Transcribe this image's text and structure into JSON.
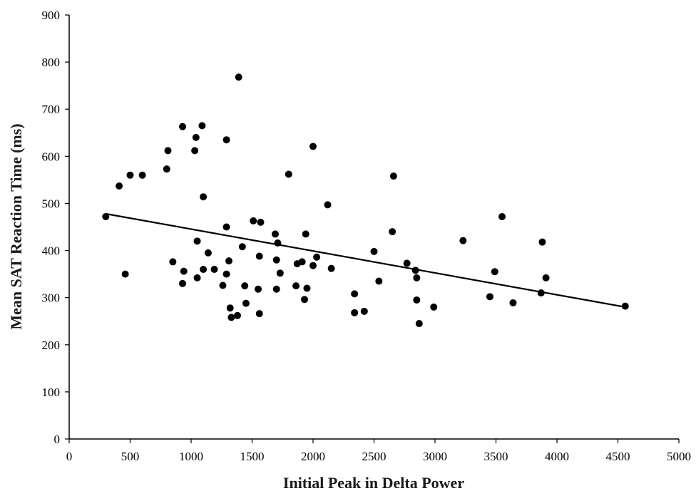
{
  "chart_data": {
    "type": "scatter",
    "title": "",
    "xlabel": "Initial Peak in Delta Power",
    "ylabel": "Mean SAT Reaction Time (ms)",
    "xlim": [
      0,
      5000
    ],
    "ylim": [
      0,
      900
    ],
    "xticks": [
      0,
      500,
      1000,
      1500,
      2000,
      2500,
      3000,
      3500,
      4000,
      4500,
      5000
    ],
    "yticks": [
      0,
      100,
      200,
      300,
      400,
      500,
      600,
      700,
      800,
      900
    ],
    "grid": false,
    "legend": "none",
    "marker_color": "#000000",
    "points": [
      {
        "x": 300,
        "y": 472
      },
      {
        "x": 410,
        "y": 537
      },
      {
        "x": 460,
        "y": 350
      },
      {
        "x": 500,
        "y": 560
      },
      {
        "x": 600,
        "y": 560
      },
      {
        "x": 800,
        "y": 573
      },
      {
        "x": 810,
        "y": 612
      },
      {
        "x": 850,
        "y": 376
      },
      {
        "x": 930,
        "y": 330
      },
      {
        "x": 930,
        "y": 663
      },
      {
        "x": 940,
        "y": 356
      },
      {
        "x": 1030,
        "y": 612
      },
      {
        "x": 1040,
        "y": 640
      },
      {
        "x": 1050,
        "y": 420
      },
      {
        "x": 1050,
        "y": 342
      },
      {
        "x": 1090,
        "y": 665
      },
      {
        "x": 1100,
        "y": 514
      },
      {
        "x": 1100,
        "y": 360
      },
      {
        "x": 1140,
        "y": 395
      },
      {
        "x": 1190,
        "y": 360
      },
      {
        "x": 1260,
        "y": 326
      },
      {
        "x": 1290,
        "y": 635
      },
      {
        "x": 1290,
        "y": 450
      },
      {
        "x": 1290,
        "y": 350
      },
      {
        "x": 1310,
        "y": 378
      },
      {
        "x": 1320,
        "y": 278
      },
      {
        "x": 1330,
        "y": 258
      },
      {
        "x": 1380,
        "y": 262
      },
      {
        "x": 1390,
        "y": 768
      },
      {
        "x": 1420,
        "y": 408
      },
      {
        "x": 1440,
        "y": 325
      },
      {
        "x": 1450,
        "y": 288
      },
      {
        "x": 1510,
        "y": 463
      },
      {
        "x": 1550,
        "y": 318
      },
      {
        "x": 1560,
        "y": 266
      },
      {
        "x": 1560,
        "y": 388
      },
      {
        "x": 1570,
        "y": 460
      },
      {
        "x": 1690,
        "y": 435
      },
      {
        "x": 1700,
        "y": 318
      },
      {
        "x": 1700,
        "y": 380
      },
      {
        "x": 1710,
        "y": 416
      },
      {
        "x": 1730,
        "y": 352
      },
      {
        "x": 1800,
        "y": 562
      },
      {
        "x": 1860,
        "y": 325
      },
      {
        "x": 1870,
        "y": 372
      },
      {
        "x": 1910,
        "y": 376
      },
      {
        "x": 1930,
        "y": 296
      },
      {
        "x": 1940,
        "y": 435
      },
      {
        "x": 1950,
        "y": 320
      },
      {
        "x": 2000,
        "y": 368
      },
      {
        "x": 2000,
        "y": 621
      },
      {
        "x": 2030,
        "y": 386
      },
      {
        "x": 2120,
        "y": 497
      },
      {
        "x": 2150,
        "y": 362
      },
      {
        "x": 2340,
        "y": 308
      },
      {
        "x": 2340,
        "y": 268
      },
      {
        "x": 2420,
        "y": 271
      },
      {
        "x": 2500,
        "y": 398
      },
      {
        "x": 2540,
        "y": 335
      },
      {
        "x": 2650,
        "y": 440
      },
      {
        "x": 2660,
        "y": 558
      },
      {
        "x": 2770,
        "y": 373
      },
      {
        "x": 2840,
        "y": 358
      },
      {
        "x": 2850,
        "y": 342
      },
      {
        "x": 2850,
        "y": 295
      },
      {
        "x": 2870,
        "y": 245
      },
      {
        "x": 2990,
        "y": 280
      },
      {
        "x": 3230,
        "y": 421
      },
      {
        "x": 3450,
        "y": 302
      },
      {
        "x": 3490,
        "y": 355
      },
      {
        "x": 3550,
        "y": 472
      },
      {
        "x": 3640,
        "y": 289
      },
      {
        "x": 3870,
        "y": 310
      },
      {
        "x": 3880,
        "y": 418
      },
      {
        "x": 3910,
        "y": 342
      },
      {
        "x": 4560,
        "y": 282
      }
    ],
    "trendline": {
      "x": [
        300,
        4560
      ],
      "y": [
        478,
        280
      ]
    }
  }
}
